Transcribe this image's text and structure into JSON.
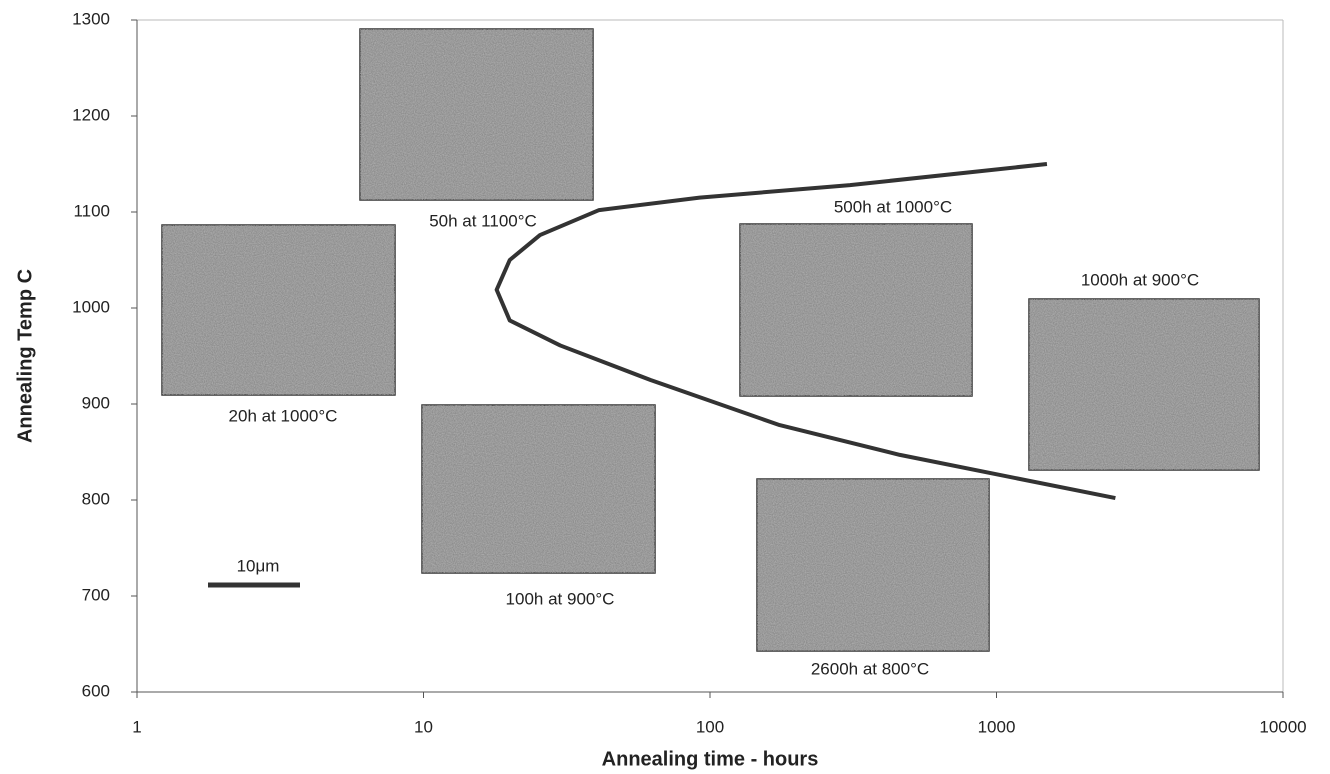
{
  "chart_data": {
    "type": "line",
    "x_label": "Annealing time - hours",
    "y_label": "Annealing Temp C",
    "log_x": true,
    "xlim": [
      1,
      10000
    ],
    "xticks": [
      1,
      10,
      100,
      1000,
      10000
    ],
    "ylim": [
      600,
      1300
    ],
    "yticks": [
      600,
      700,
      800,
      900,
      1000,
      1100,
      1200,
      1300
    ],
    "series": [
      {
        "color": "#333333",
        "x": [
          1500,
          308,
          92,
          41,
          25.5,
          20,
          18,
          20,
          30,
          62,
          175,
          460,
          2600
        ],
        "values": [
          1150,
          1128,
          1115,
          1102,
          1076,
          1050,
          1019,
          987,
          961,
          925,
          878,
          847,
          802
        ]
      }
    ],
    "annotations": [
      "50h at 1100°C",
      "20h at 1000°C",
      "100h at 900°C",
      "500h at 1000°C",
      "1000h at 900°C",
      "2600h at 800°C"
    ],
    "scale_bar": "10μm"
  }
}
